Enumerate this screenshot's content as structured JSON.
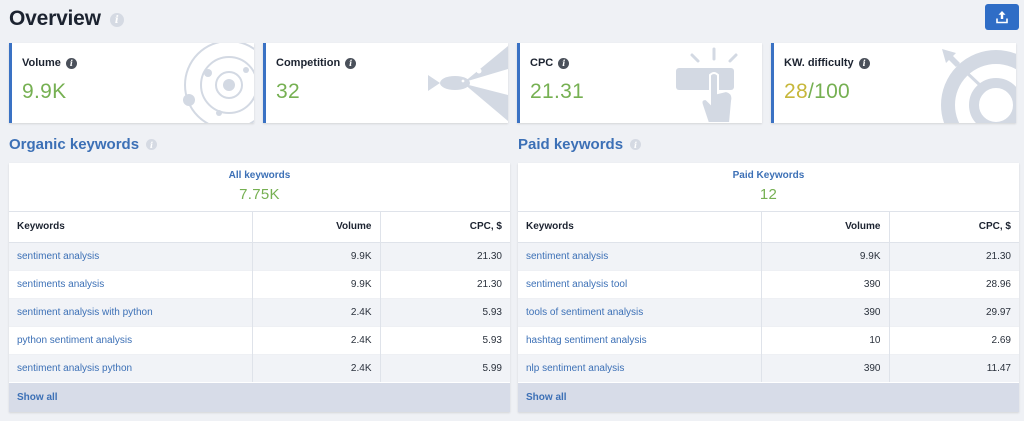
{
  "header": {
    "title": "Overview",
    "info_icon": "info-icon",
    "export_icon": "upload-icon"
  },
  "metrics": [
    {
      "label": "Volume",
      "value": "9.9K",
      "icon": "orbit-icon"
    },
    {
      "label": "Competition",
      "value": "32",
      "icon": "big-fish-small-fish-icon"
    },
    {
      "label": "CPC",
      "value": "21.31",
      "icon": "click-hand-icon"
    },
    {
      "label": "KW. difficulty",
      "value": "28",
      "value_suffix": "/100",
      "icon": "target-arrow-icon"
    }
  ],
  "organic": {
    "title": "Organic keywords",
    "summary_label": "All keywords",
    "summary_value": "7.75K",
    "columns": [
      "Keywords",
      "Volume",
      "CPC, $"
    ],
    "rows": [
      {
        "keyword": "sentiment analysis",
        "volume": "9.9K",
        "cpc": "21.30"
      },
      {
        "keyword": "sentiments analysis",
        "volume": "9.9K",
        "cpc": "21.30"
      },
      {
        "keyword": "sentiment analysis with python",
        "volume": "2.4K",
        "cpc": "5.93"
      },
      {
        "keyword": "python sentiment analysis",
        "volume": "2.4K",
        "cpc": "5.93"
      },
      {
        "keyword": "sentiment analysis python",
        "volume": "2.4K",
        "cpc": "5.99"
      }
    ],
    "show_all": "Show all"
  },
  "paid": {
    "title": "Paid keywords",
    "summary_label": "Paid Keywords",
    "summary_value": "12",
    "columns": [
      "Keywords",
      "Volume",
      "CPC, $"
    ],
    "rows": [
      {
        "keyword": "sentiment analysis",
        "volume": "9.9K",
        "cpc": "21.30"
      },
      {
        "keyword": "sentiment analysis tool",
        "volume": "390",
        "cpc": "28.96"
      },
      {
        "keyword": "tools of sentiment analysis",
        "volume": "390",
        "cpc": "29.97"
      },
      {
        "keyword": "hashtag sentiment analysis",
        "volume": "10",
        "cpc": "2.69"
      },
      {
        "keyword": "nlp sentiment analysis",
        "volume": "390",
        "cpc": "11.47"
      }
    ],
    "show_all": "Show all"
  },
  "colors": {
    "accent": "#3c70b6",
    "button": "#2f6dc6",
    "value_green": "#76b052",
    "value_yellow": "#c7b73a",
    "background": "#eff1f5"
  }
}
